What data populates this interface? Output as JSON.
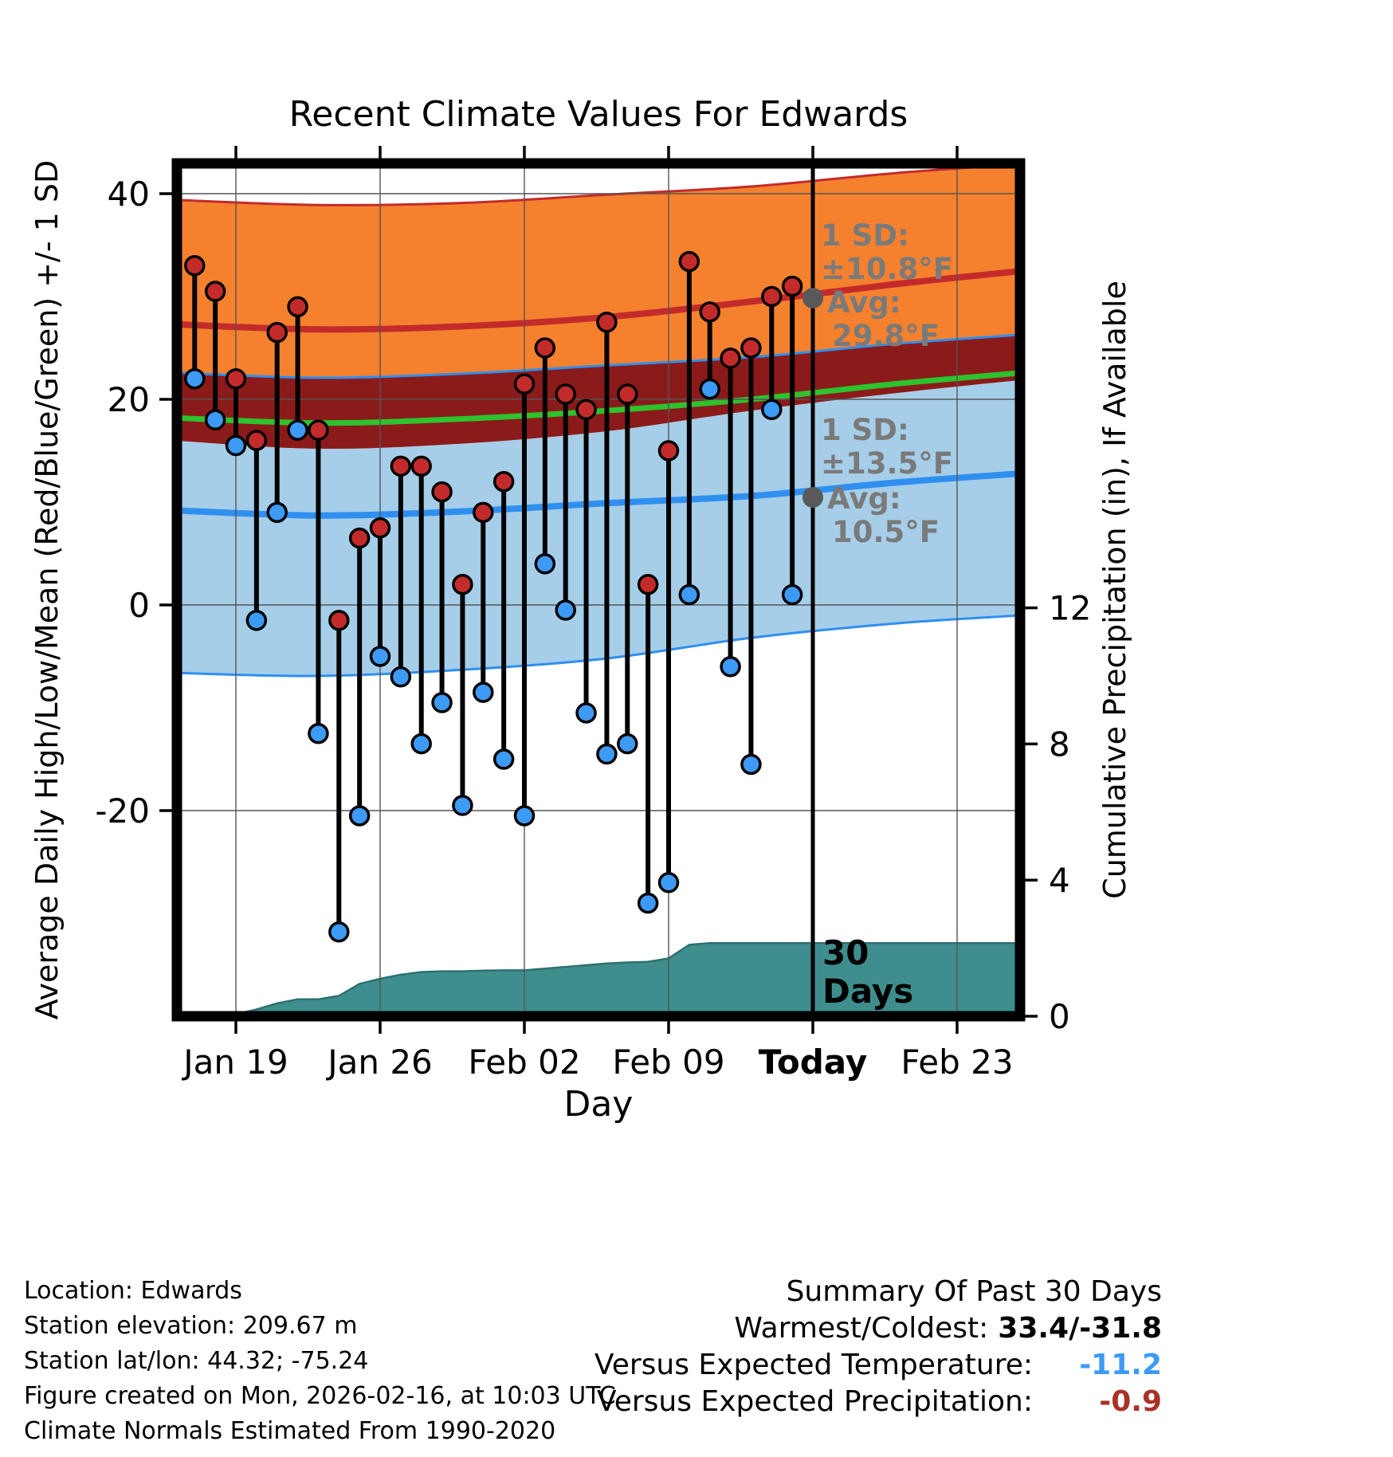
{
  "title": "Recent Climate Values For Edwards",
  "axes": {
    "x_label": "Day",
    "left_label": "Average Daily High/Low/Mean (Red/Blue/Green) +/- 1 SD",
    "right_label": "Cumulative Precipitation (in), If Available",
    "x_ticks": [
      {
        "label": "Jan 19",
        "day": -28,
        "bold": false
      },
      {
        "label": "Jan 26",
        "day": -21,
        "bold": false
      },
      {
        "label": "Feb 02",
        "day": -14,
        "bold": false
      },
      {
        "label": "Feb 09",
        "day": -7,
        "bold": false
      },
      {
        "label": "Today",
        "day": 0,
        "bold": true
      },
      {
        "label": "Feb 23",
        "day": 7,
        "bold": false
      }
    ],
    "temp_ticks": [
      40,
      20,
      0,
      -20
    ],
    "precip_ticks": [
      12,
      8,
      4,
      0
    ]
  },
  "chart_data": {
    "type": "combo: daily high/low temperature stems + climatology mean/SD bands (area+line) + cumulative precipitation area",
    "title": "Recent Climate Values For Edwards",
    "x_unit": "day offset from Today (Feb 16)",
    "temp_axis_ticks": [
      40,
      20,
      0,
      -20
    ],
    "precip_axis_ticks": [
      12,
      8,
      4,
      0
    ],
    "daily": {
      "start_day_offset": -30,
      "dates": [
        "Jan 17",
        "Jan 18",
        "Jan 19",
        "Jan 20",
        "Jan 21",
        "Jan 22",
        "Jan 23",
        "Jan 24",
        "Jan 25",
        "Jan 26",
        "Jan 27",
        "Jan 28",
        "Jan 29",
        "Jan 30",
        "Jan 31",
        "Feb 01",
        "Feb 02",
        "Feb 03",
        "Feb 04",
        "Feb 05",
        "Feb 06",
        "Feb 07",
        "Feb 08",
        "Feb 09",
        "Feb 10",
        "Feb 11",
        "Feb 12",
        "Feb 13",
        "Feb 14",
        "Feb 15"
      ],
      "high": [
        33,
        30.5,
        22,
        16,
        26.5,
        29,
        17,
        -1.5,
        6.5,
        7.5,
        13.5,
        13.5,
        11,
        2,
        9,
        12,
        21.5,
        25,
        20.5,
        19,
        27.5,
        20.5,
        2,
        15,
        33.4,
        28.5,
        24,
        25,
        30,
        31
      ],
      "low": [
        22,
        18,
        15.5,
        -1.5,
        9,
        17,
        -12.5,
        -31.8,
        -20.5,
        -5,
        -7,
        -13.5,
        -9.5,
        -19.5,
        -8.5,
        -15,
        -20.5,
        4,
        -0.5,
        -10.5,
        -14.5,
        -13.5,
        -29,
        -27,
        1,
        21,
        -6,
        -15.5,
        19,
        1
      ]
    },
    "climatology": {
      "days": [
        -31,
        -24,
        -17,
        -10,
        -3,
        4,
        10.2
      ],
      "high_plus_sd": [
        39.4,
        38.9,
        39.1,
        39.9,
        40.7,
        42.0,
        42.9
      ],
      "high_avg": [
        27.3,
        26.8,
        27.1,
        28.0,
        29.5,
        31.2,
        32.5
      ],
      "high_minus_sd": [
        16.0,
        15.2,
        15.7,
        16.9,
        18.9,
        20.6,
        21.9
      ],
      "low_plus_sd": [
        22.6,
        22.1,
        22.5,
        23.3,
        24.1,
        25.4,
        26.3
      ],
      "low_avg": [
        9.2,
        8.7,
        9.1,
        9.9,
        10.6,
        11.9,
        12.8
      ],
      "low_minus_sd": [
        -6.6,
        -6.9,
        -6.3,
        -5.2,
        -3.2,
        -1.8,
        -1.0
      ],
      "mean_avg": [
        18.2,
        17.7,
        18.1,
        18.9,
        20.0,
        21.5,
        22.6
      ]
    },
    "precip_cumulative": {
      "start_day_offset": -30,
      "values": [
        0.02,
        0.02,
        0.06,
        0.2,
        0.38,
        0.5,
        0.5,
        0.6,
        0.95,
        1.1,
        1.22,
        1.3,
        1.32,
        1.32,
        1.34,
        1.35,
        1.35,
        1.4,
        1.45,
        1.5,
        1.55,
        1.58,
        1.6,
        1.7,
        2.1,
        2.15,
        2.15,
        2.15,
        2.15,
        2.15
      ]
    }
  },
  "annotations": {
    "high": {
      "sd_label": "1 SD:",
      "sd_value": "±10.8°F",
      "avg_label": "Avg:",
      "avg_value": "29.8°F",
      "avg_temp": 29.8
    },
    "low": {
      "sd_label": "1 SD:",
      "sd_value": "±13.5°F",
      "avg_label": "Avg:",
      "avg_value": "10.5°F",
      "avg_temp": 10.5
    },
    "today_line_label_1": "30",
    "today_line_label_2": "Days"
  },
  "footer": {
    "left_lines": [
      "Location: Edwards",
      "Station elevation: 209.67 m",
      "Station lat/lon: 44.32; -75.24",
      "Figure created on Mon, 2026-02-16, at 10:03 UTC",
      "Climate Normals Estimated From 1990-2020"
    ],
    "summary": {
      "title": "Summary Of Past 30 Days",
      "rows": [
        {
          "label": "Warmest/Coldest:",
          "value": "33.4/-31.8",
          "color": "#000000"
        },
        {
          "label": "Versus Expected Temperature:",
          "value": "-11.2",
          "color": "#3D9AF5"
        },
        {
          "label": "Versus Expected Precipitation:",
          "value": "-0.9",
          "color": "#A93226"
        }
      ]
    }
  },
  "colors": {
    "band_high": "#F5812E",
    "band_low": "#A6CEE9",
    "band_overlap": "#8B1A1A",
    "line_high": "#C32B2B",
    "line_low": "#2F8FEF",
    "line_mean": "#2EC22E",
    "dot_high": "#C32B2B",
    "dot_low": "#3D9AF5",
    "precip_fill": "#3F8E8E",
    "precip_edge": "#2E6F70",
    "marker_gray": "#595959",
    "annotation_gray": "#7A7A7A",
    "summary_temp_value": "#3D9AF5",
    "summary_precip_value": "#A93226"
  }
}
